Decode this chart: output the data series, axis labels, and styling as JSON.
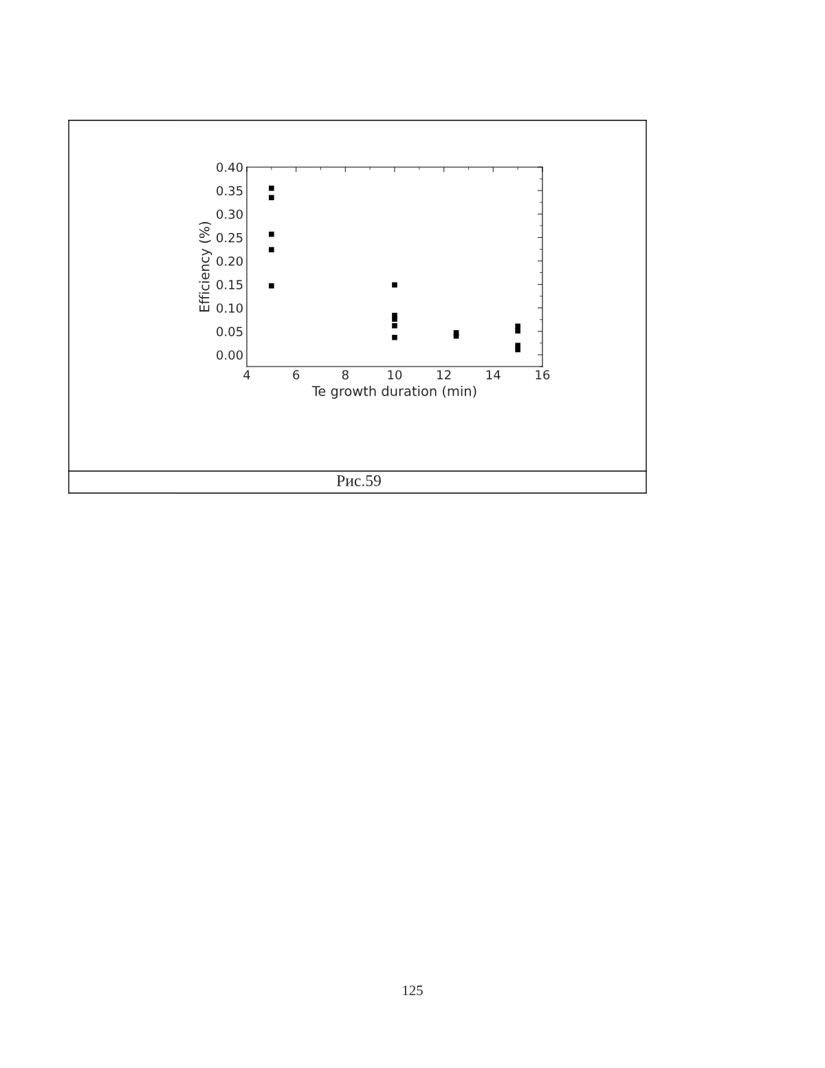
{
  "chart_data": {
    "type": "scatter",
    "xlabel": "Te growth duration (min)",
    "ylabel": "Efficiency (%)",
    "x": [
      5,
      5,
      5,
      5,
      5,
      10,
      10,
      10,
      10,
      10,
      12.5,
      12.5,
      15,
      15,
      15,
      15
    ],
    "series": [
      {
        "color": "#000000",
        "values": [
          0.355,
          0.335,
          0.257,
          0.224,
          0.147,
          0.149,
          0.084,
          0.076,
          0.062,
          0.037,
          0.047,
          0.04,
          0.061,
          0.051,
          0.02,
          0.011
        ]
      }
    ],
    "xlim": [
      4,
      16
    ],
    "xticks": [
      4,
      6,
      8,
      10,
      12,
      14,
      16
    ],
    "ylim": [
      -0.025,
      0.4
    ],
    "yticks": [
      {
        "value": 0.0,
        "label": "0.00"
      },
      {
        "value": 0.05,
        "label": "0.05"
      },
      {
        "value": 0.1,
        "label": "0.10"
      },
      {
        "value": 0.15,
        "label": "0.15"
      },
      {
        "value": 0.2,
        "label": "0.20"
      },
      {
        "value": 0.25,
        "label": "0.25"
      },
      {
        "value": 0.3,
        "label": "0.30"
      },
      {
        "value": 0.35,
        "label": "0.35"
      },
      {
        "value": 0.4,
        "label": "0.40"
      }
    ],
    "marker": "square",
    "grid": false,
    "legend": false,
    "annotations": [
      "Рис.59",
      "125"
    ]
  }
}
